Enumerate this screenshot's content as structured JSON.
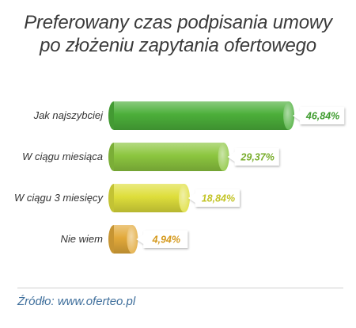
{
  "title_lines": [
    "Preferowany czas podpisania umowy",
    "po złożeniu zapytania ofertowego"
  ],
  "source": "Źródło: www.oferteo.pl",
  "chart_data": {
    "type": "bar",
    "orientation": "horizontal",
    "categories": [
      "Jak najszybciej",
      "W ciągu miesiąca",
      "W ciągu 3 miesięcy",
      "Nie wiem"
    ],
    "values": [
      46.84,
      29.37,
      18.84,
      4.94
    ],
    "value_labels": [
      "46,84%",
      "29,37%",
      "18,84%",
      "4,94%"
    ],
    "bar_colors": [
      "#4caf3a",
      "#8cc63f",
      "#dede3b",
      "#e2a93a"
    ],
    "label_colors": [
      "#3f9c2f",
      "#79ad2c",
      "#c3c427",
      "#d59a1f"
    ],
    "grid": false,
    "legend": "none"
  }
}
